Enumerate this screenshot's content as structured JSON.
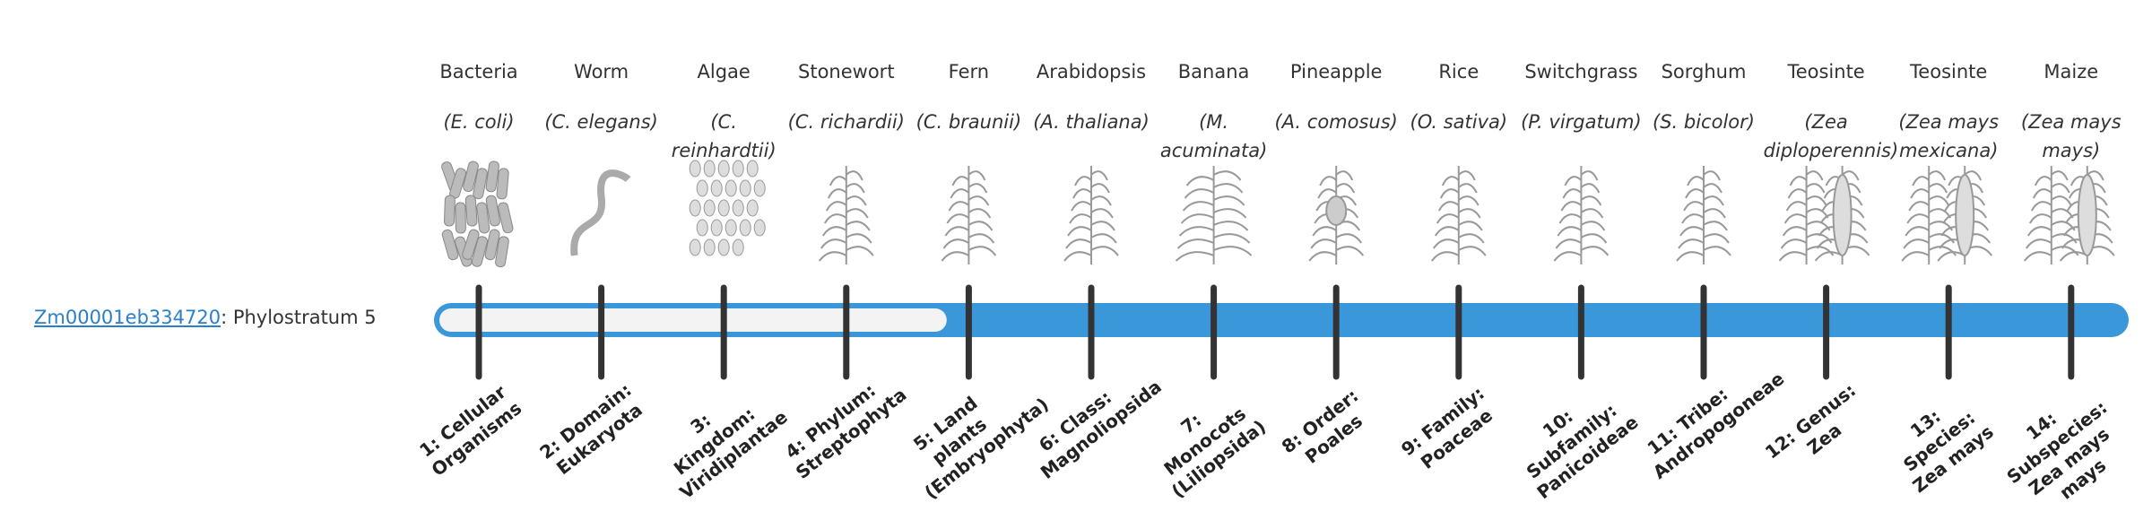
{
  "gene": {
    "id": "Zm00001eb334720",
    "label": ": Phylostratum",
    "phylostratum": 5
  },
  "organisms": [
    {
      "name": "Bacteria",
      "species": "(E. coli)"
    },
    {
      "name": "Worm",
      "species": "(C. elegans)"
    },
    {
      "name": "Algae",
      "species": "(C. reinhardtii)"
    },
    {
      "name": "Stonewort",
      "species": "(C. richardii)"
    },
    {
      "name": "Fern",
      "species": "(C. braunii)"
    },
    {
      "name": "Arabidopsis",
      "species": "(A. thaliana)"
    },
    {
      "name": "Banana",
      "species": "(M. acuminata)"
    },
    {
      "name": "Pineapple",
      "species": "(A. comosus)"
    },
    {
      "name": "Rice",
      "species": "(O. sativa)"
    },
    {
      "name": "Switchgrass",
      "species": "(P. virgatum)"
    },
    {
      "name": "Sorghum",
      "species": "(S. bicolor)"
    },
    {
      "name": "Teosinte",
      "species": "(Zea diploperennis)"
    },
    {
      "name": "Teosinte",
      "species": "(Zea mays mexicana)"
    },
    {
      "name": "Maize",
      "species": "(Zea mays mays)"
    }
  ],
  "strata": [
    "1: Cellular Organisms",
    "2: Domain: Eukaryota",
    "3: Kingdom: Viridiplantae",
    "4: Phylum: Streptophyta",
    "5: Land plants (Embryophyta)",
    "6: Class: Magnoliopsida",
    "7: Monocots (Liliopsida)",
    "8: Order: Poales",
    "9: Family: Poaceae",
    "10: Subfamily: Panicoideae",
    "11: Tribe: Andropogoneae",
    "12: Genus: Zea",
    "13: Species: Zea mays",
    "14: Subspecies: Zea mays mays"
  ]
}
